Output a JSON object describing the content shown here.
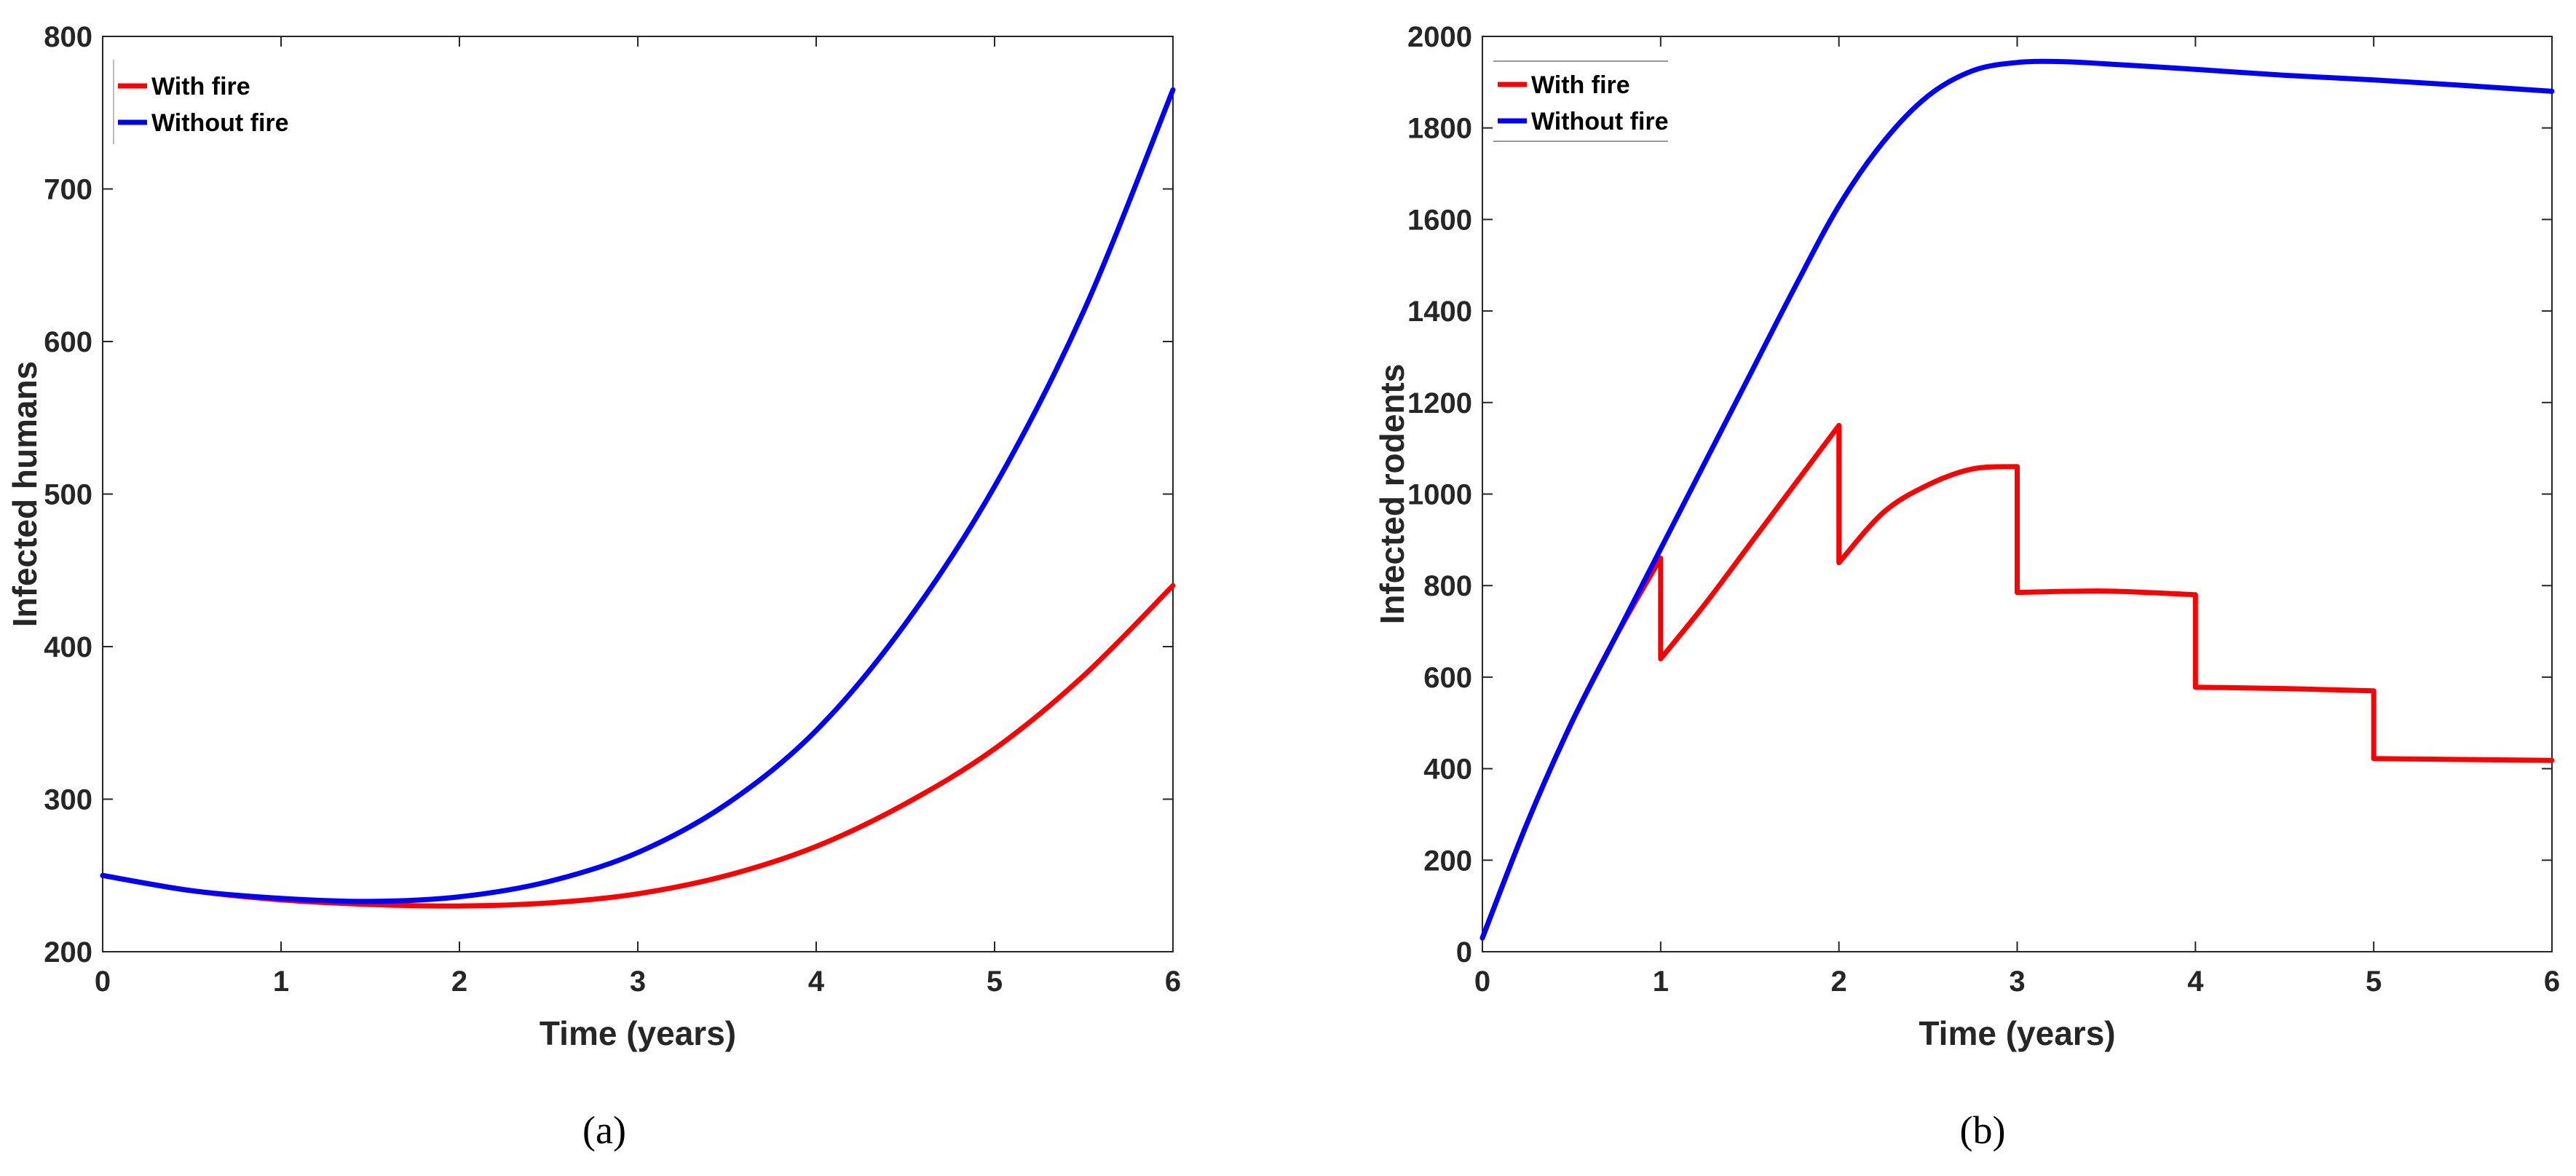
{
  "colors": {
    "with_fire": "#ff0000",
    "without_fire": "#0000ff",
    "axis": "#262626"
  },
  "chart_data": [
    {
      "type": "line",
      "panel_caption": "(a)",
      "xlabel": "Time (years)",
      "ylabel": "Infected humans",
      "xlim": [
        0,
        6
      ],
      "ylim": [
        200,
        800
      ],
      "xticks": [
        0,
        1,
        2,
        3,
        4,
        5,
        6
      ],
      "yticks": [
        200,
        300,
        400,
        500,
        600,
        700,
        800
      ],
      "legend_position": "top-left",
      "grid": false,
      "series": [
        {
          "name": "With fire",
          "color": "#ff0000",
          "x": [
            0,
            0.5,
            1,
            1.5,
            2,
            2.5,
            3,
            3.5,
            4,
            4.5,
            5,
            5.5,
            6
          ],
          "y": [
            250,
            240,
            234,
            231,
            230,
            232,
            238,
            250,
            269,
            297,
            333,
            381,
            440
          ]
        },
        {
          "name": "Without fire",
          "color": "#0000ff",
          "x": [
            0,
            0.5,
            1,
            1.5,
            2,
            2.5,
            3,
            3.5,
            4,
            4.5,
            5,
            5.5,
            6
          ],
          "y": [
            250,
            240,
            235,
            233,
            236,
            246,
            265,
            297,
            345,
            415,
            505,
            620,
            765
          ]
        }
      ]
    },
    {
      "type": "line",
      "panel_caption": "(b)",
      "xlabel": "Time (years)",
      "ylabel": "Infected rodents",
      "xlim": [
        0,
        6
      ],
      "ylim": [
        0,
        2000
      ],
      "xticks": [
        0,
        1,
        2,
        3,
        4,
        5,
        6
      ],
      "yticks": [
        0,
        200,
        400,
        600,
        800,
        1000,
        1200,
        1400,
        1600,
        1800,
        2000
      ],
      "legend_position": "top-left",
      "grid": false,
      "series": [
        {
          "name": "With fire",
          "color": "#ff0000",
          "x": [
            0,
            0.25,
            0.5,
            0.75,
            1,
            1,
            1.25,
            1.5,
            1.75,
            2,
            2,
            2.25,
            2.5,
            2.75,
            3,
            3,
            3.5,
            4,
            4,
            4.5,
            5,
            5,
            5.5,
            6
          ],
          "y": [
            30,
            280,
            500,
            690,
            860,
            640,
            760,
            890,
            1020,
            1150,
            850,
            960,
            1020,
            1055,
            1060,
            785,
            788,
            780,
            578,
            575,
            570,
            422,
            420,
            418
          ]
        },
        {
          "name": "Without fire",
          "color": "#0000ff",
          "x": [
            0,
            0.25,
            0.5,
            0.75,
            1,
            1.25,
            1.5,
            1.75,
            2,
            2.25,
            2.5,
            2.75,
            3,
            3.25,
            3.5,
            4,
            4.5,
            5,
            5.5,
            6
          ],
          "y": [
            30,
            280,
            500,
            690,
            880,
            1070,
            1260,
            1450,
            1630,
            1770,
            1870,
            1925,
            1943,
            1945,
            1940,
            1928,
            1915,
            1905,
            1893,
            1880
          ]
        }
      ]
    }
  ]
}
